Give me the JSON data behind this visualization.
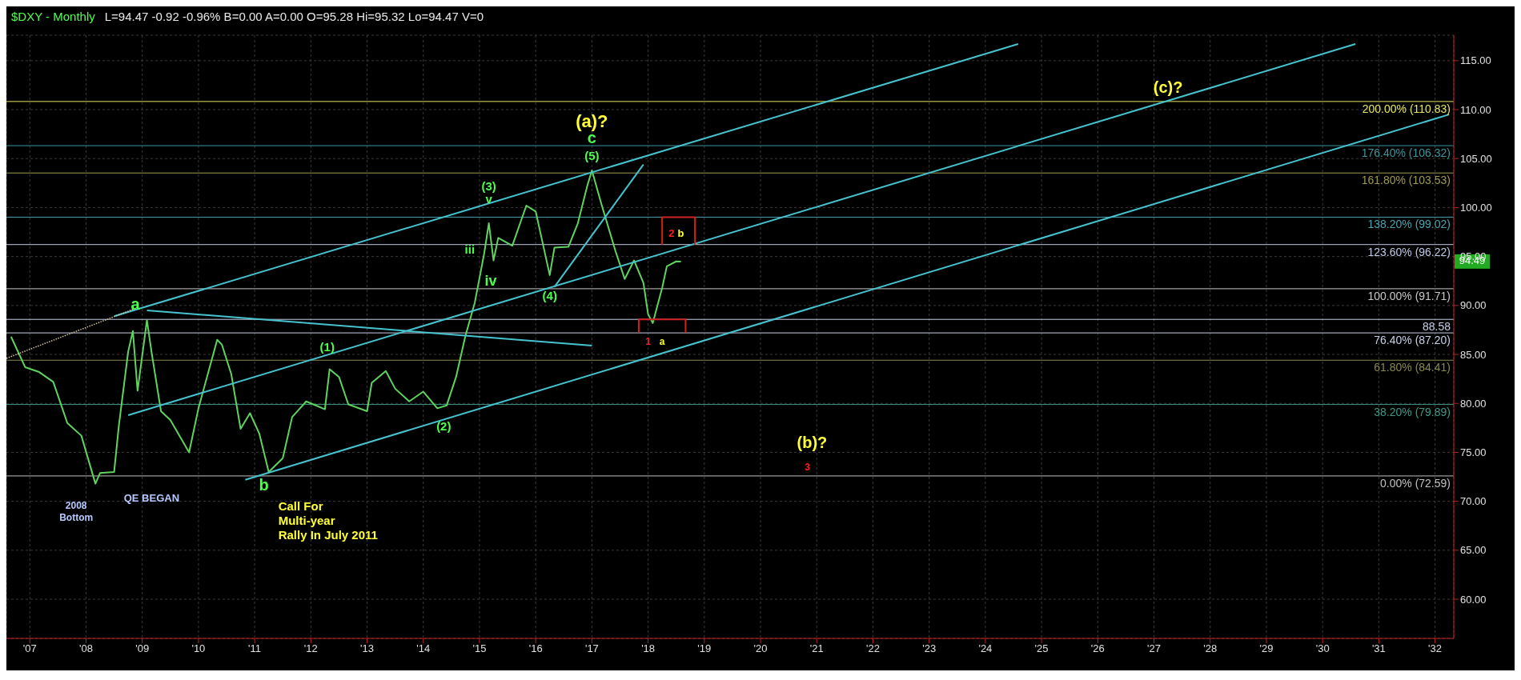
{
  "chart_data": {
    "type": "line",
    "title": "$DXY - Monthly",
    "subtitle": "L=94.47 -0.92 -0.96% B=0.00 A=0.00 O=95.28 Hi=95.32 Lo=94.47 V=0",
    "xlim": [
      "2006-08",
      "2032-05"
    ],
    "xticks": [
      {
        "value": "2007",
        "label": "'07"
      },
      {
        "value": "2008",
        "label": "'08"
      },
      {
        "value": "2009",
        "label": "'09"
      },
      {
        "value": "2010",
        "label": "'10"
      },
      {
        "value": "2011",
        "label": "'11"
      },
      {
        "value": "2012",
        "label": "'12"
      },
      {
        "value": "2013",
        "label": "'13"
      },
      {
        "value": "2014",
        "label": "'14"
      },
      {
        "value": "2015",
        "label": "'15"
      },
      {
        "value": "2016",
        "label": "'16"
      },
      {
        "value": "2017",
        "label": "'17"
      },
      {
        "value": "2018",
        "label": "'18"
      },
      {
        "value": "2019",
        "label": "'19"
      },
      {
        "value": "2020",
        "label": "'20"
      },
      {
        "value": "2021",
        "label": "'21"
      },
      {
        "value": "2022",
        "label": "'22"
      },
      {
        "value": "2023",
        "label": "'23"
      },
      {
        "value": "2024",
        "label": "'24"
      },
      {
        "value": "2025",
        "label": "'25"
      },
      {
        "value": "2026",
        "label": "'26"
      },
      {
        "value": "2027",
        "label": "'27"
      },
      {
        "value": "2028",
        "label": "'28"
      },
      {
        "value": "2029",
        "label": "'29"
      },
      {
        "value": "2030",
        "label": "'30"
      },
      {
        "value": "2031",
        "label": "'31"
      },
      {
        "value": "2032",
        "label": "'32"
      }
    ],
    "ylim": [
      56,
      117.6
    ],
    "yticks": [
      {
        "value": 60,
        "label": "60.00"
      },
      {
        "value": 65,
        "label": "65.00"
      },
      {
        "value": 70,
        "label": "70.00"
      },
      {
        "value": 75,
        "label": "75.00"
      },
      {
        "value": 80,
        "label": "80.00"
      },
      {
        "value": 85,
        "label": "85.00"
      },
      {
        "value": 90,
        "label": "90.00"
      },
      {
        "value": 95,
        "label": "95.00"
      },
      {
        "value": 100,
        "label": "100.00"
      },
      {
        "value": 105,
        "label": "105.00"
      },
      {
        "value": 110,
        "label": "110.00"
      },
      {
        "value": 115,
        "label": "115.00"
      }
    ],
    "grid": true,
    "series": [
      {
        "color": "#5fd35f",
        "x": [
          "2006-09",
          "2006-12",
          "2007-03",
          "2007-06",
          "2007-09",
          "2007-12",
          "2008-03",
          "2008-04",
          "2008-07",
          "2008-08",
          "2008-10",
          "2008-11",
          "2008-12",
          "2009-02",
          "2009-03",
          "2009-05",
          "2009-07",
          "2009-11",
          "2010-01",
          "2010-05",
          "2010-06",
          "2010-08",
          "2010-10",
          "2010-12",
          "2011-02",
          "2011-04",
          "2011-07",
          "2011-09",
          "2011-12",
          "2012-04",
          "2012-05",
          "2012-07",
          "2012-09",
          "2013-01",
          "2013-02",
          "2013-05",
          "2013-07",
          "2013-10",
          "2014-01",
          "2014-04",
          "2014-06",
          "2014-08",
          "2014-10",
          "2014-12",
          "2015-02",
          "2015-03",
          "2015-04",
          "2015-05",
          "2015-08",
          "2015-11",
          "2016-01",
          "2016-04",
          "2016-05",
          "2016-08",
          "2016-10",
          "2016-12",
          "2017-01",
          "2017-03",
          "2017-06",
          "2017-08",
          "2017-10",
          "2017-12",
          "2018-01",
          "2018-02",
          "2018-04",
          "2018-05",
          "2018-07",
          "2018-08"
        ],
        "values": [
          86.8,
          83.7,
          83.2,
          82.2,
          78.0,
          76.7,
          71.8,
          72.9,
          73.0,
          77.7,
          85.3,
          87.4,
          81.3,
          88.5,
          85.2,
          79.2,
          78.3,
          75.0,
          79.5,
          86.5,
          86.0,
          83.0,
          77.4,
          79.0,
          76.9,
          73.0,
          74.4,
          78.6,
          80.2,
          79.4,
          83.5,
          82.7,
          79.9,
          79.2,
          82.1,
          83.3,
          81.5,
          80.2,
          81.2,
          79.5,
          79.8,
          82.7,
          86.9,
          90.3,
          95.3,
          98.4,
          94.6,
          96.9,
          96.1,
          100.2,
          99.6,
          93.1,
          95.9,
          96.0,
          98.4,
          102.2,
          103.8,
          100.4,
          95.6,
          92.7,
          94.6,
          92.3,
          89.1,
          88.2,
          91.8,
          94.0,
          94.5,
          94.47
        ]
      },
      {
        "color": "#45c4d0",
        "x": [
          "2008-07",
          "2024-08"
        ],
        "values": [
          88.9,
          116.7
        ]
      },
      {
        "color": "#45c4d0",
        "x": [
          "2008-10",
          "2030-08"
        ],
        "values": [
          78.8,
          116.7
        ]
      },
      {
        "color": "#45c4d0",
        "x": [
          "2010-11",
          "2032-04"
        ],
        "values": [
          72.2,
          109.5
        ]
      },
      {
        "color": "#45c4d0",
        "x": [
          "2009-02",
          "2017-01"
        ],
        "values": [
          89.5,
          85.9
        ]
      },
      {
        "color": "#45c4d0",
        "x": [
          "2016-05",
          "2017-12"
        ],
        "values": [
          91.9,
          104.4
        ]
      },
      {
        "color": "#d8c8a0",
        "line_style": "dotted",
        "x": [
          "2006-08",
          "2008-11"
        ],
        "values": [
          84.6,
          89.6
        ]
      },
      {
        "color": "#d02020",
        "x": [
          "2017-11",
          "2017-11",
          "2018-09",
          "2018-09"
        ],
        "values": [
          87.2,
          88.58,
          88.58,
          87.2
        ]
      },
      {
        "color": "#d02020",
        "x": [
          "2018-04",
          "2018-04",
          "2018-11",
          "2018-11"
        ],
        "values": [
          96.22,
          99.02,
          99.02,
          96.22
        ]
      }
    ],
    "ref_lines": [
      {
        "axis": "y",
        "value": 110.83,
        "label": "200.00% (110.83)",
        "color": "#e6e65a"
      },
      {
        "axis": "y",
        "value": 106.32,
        "label": "176.40% (106.32)",
        "color": "#3a96a0"
      },
      {
        "axis": "y",
        "value": 103.53,
        "label": "161.80% (103.53)",
        "color": "#a09a50"
      },
      {
        "axis": "y",
        "value": 99.02,
        "label": "138.20% (99.02)",
        "color": "#4aa3b0"
      },
      {
        "axis": "y",
        "value": 96.22,
        "label": "123.60% (96.22)",
        "color": "#c0c8e8"
      },
      {
        "axis": "y",
        "value": 91.71,
        "label": "100.00% (91.71)",
        "color": "#c8c8c8"
      },
      {
        "axis": "y",
        "value": 88.58,
        "label": "88.58",
        "color": "#c8d0e8"
      },
      {
        "axis": "y",
        "value": 87.2,
        "label": "76.40% (87.20)",
        "color": "#c8d0e8"
      },
      {
        "axis": "y",
        "value": 84.41,
        "label": "61.80% (84.41)",
        "color": "#8a8a50"
      },
      {
        "axis": "y",
        "value": 79.89,
        "label": "38.20% (79.89)",
        "color": "#3a9a8a"
      },
      {
        "axis": "y",
        "value": 72.59,
        "label": "0.00% (72.59)",
        "color": "#c0c0c0"
      }
    ],
    "annotations": [
      {
        "text": "(a)?",
        "x": "2017-01",
        "y": 103.8
      },
      {
        "text": "c",
        "x": "2017-01",
        "y": 103.8
      },
      {
        "text": "(5)",
        "x": "2017-01",
        "y": 103.8
      },
      {
        "text": "(3)",
        "x": "2015-03",
        "y": 98.4
      },
      {
        "text": "v",
        "x": "2015-03",
        "y": 98.4
      },
      {
        "text": "iii",
        "x": "2015-02",
        "y": 95.3
      },
      {
        "text": "iv",
        "x": "2014-12",
        "y": 90.3
      },
      {
        "text": "(4)",
        "x": "2016-04",
        "y": 93.1
      },
      {
        "text": "a",
        "x": "2008-11",
        "y": 87.4
      },
      {
        "text": "(1)",
        "x": "2012-05",
        "y": 83.5
      },
      {
        "text": "(2)",
        "x": "2014-04",
        "y": 79.5
      },
      {
        "text": "b",
        "x": "2011-04",
        "y": 73.0
      },
      {
        "text": "2008\nBottom",
        "x": "2008-03",
        "y": 71.8
      },
      {
        "text": "QE BEGAN",
        "x": "2009-03",
        "y": 72.59
      },
      {
        "text": "Call For\nMulti-year\nRally  In July 2011",
        "x": "2011-04",
        "y": 73.0
      },
      {
        "text": "1",
        "x": "2018-01",
        "y": 87.2
      },
      {
        "text": "a",
        "x": "2018-04",
        "y": 87.2
      },
      {
        "text": "2",
        "x": "2018-06",
        "y": 96.22
      },
      {
        "text": "b",
        "x": "2018-08",
        "y": 96.22
      },
      {
        "text": "(b)?",
        "x": "2020-12",
        "y": 79.89
      },
      {
        "text": "3",
        "x": "2020-11",
        "y": 72.59
      },
      {
        "text": "(c)?",
        "x": "2027-04",
        "y": 110.83
      },
      {
        "text": "94.49",
        "y": 94.49
      }
    ]
  }
}
